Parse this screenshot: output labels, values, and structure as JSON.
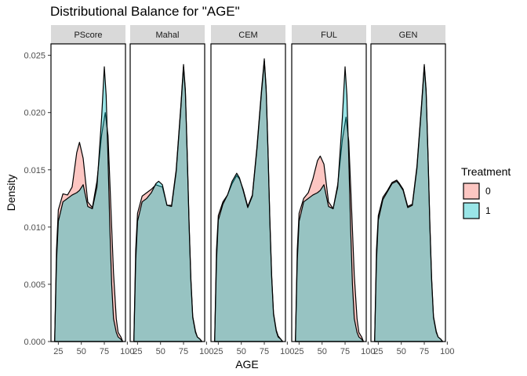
{
  "chart_data": {
    "type": "area",
    "title": "Distributional Balance for \"AGE\"",
    "xlabel": "AGE",
    "ylabel": "Density",
    "ylim": [
      0,
      0.026
    ],
    "yticks": [
      0.0,
      0.005,
      0.01,
      0.015,
      0.02,
      0.025
    ],
    "ytick_labels": [
      "0.000",
      "0.005",
      "0.010",
      "0.015",
      "0.020",
      "0.025"
    ],
    "xlim": [
      17,
      98
    ],
    "xticks": [
      25,
      50,
      75,
      100
    ],
    "xtick_labels": [
      "25",
      "50",
      "75",
      "100"
    ],
    "grid": false,
    "legend": {
      "title": "Treatment",
      "placement": "right",
      "entries": [
        {
          "label": "0",
          "color": "#F8766D"
        },
        {
          "label": "1",
          "color": "#00BFC4"
        }
      ]
    },
    "series_colors": {
      "0": "#F8766D",
      "1": "#00BFC4"
    },
    "panels": [
      {
        "name": "PScore",
        "series": [
          {
            "name": "0",
            "x": [
              21,
              23,
              25,
              30,
              35,
              40,
              45,
              48,
              52,
              57,
              62,
              67,
              72,
              76,
              79,
              82,
              85,
              88,
              90,
              93,
              95
            ],
            "y": [
              0.0,
              0.008,
              0.0115,
              0.0129,
              0.0128,
              0.0135,
              0.0165,
              0.0174,
              0.016,
              0.0122,
              0.0117,
              0.014,
              0.018,
              0.02,
              0.018,
              0.012,
              0.006,
              0.002,
              0.0008,
              0.0004,
              0.0
            ]
          },
          {
            "name": "1",
            "x": [
              21,
              23,
              25,
              30,
              35,
              40,
              45,
              48,
              52,
              57,
              62,
              67,
              72,
              75,
              77,
              79,
              81,
              83,
              85,
              88,
              90,
              93,
              95
            ],
            "y": [
              0.0,
              0.007,
              0.0105,
              0.0122,
              0.0125,
              0.0128,
              0.013,
              0.0132,
              0.0137,
              0.0118,
              0.0116,
              0.0135,
              0.0195,
              0.024,
              0.0215,
              0.016,
              0.01,
              0.005,
              0.002,
              0.0008,
              0.0004,
              0.0002,
              0.0
            ]
          }
        ]
      },
      {
        "name": "Mahal",
        "series": [
          {
            "name": "0",
            "x": [
              21,
              23,
              25,
              30,
              35,
              40,
              45,
              48,
              52,
              57,
              62,
              67,
              72,
              75,
              77,
              79,
              81,
              83,
              85,
              88,
              90,
              93,
              95
            ],
            "y": [
              0.0,
              0.008,
              0.0112,
              0.0127,
              0.013,
              0.0133,
              0.0137,
              0.0136,
              0.0135,
              0.0119,
              0.0119,
              0.015,
              0.0205,
              0.0242,
              0.022,
              0.0165,
              0.0105,
              0.0055,
              0.0022,
              0.0009,
              0.0004,
              0.0002,
              0.0
            ]
          },
          {
            "name": "1",
            "x": [
              21,
              23,
              25,
              30,
              35,
              40,
              45,
              48,
              52,
              57,
              62,
              67,
              72,
              75,
              77,
              79,
              81,
              83,
              85,
              88,
              90,
              93,
              95
            ],
            "y": [
              0.0,
              0.007,
              0.0105,
              0.0122,
              0.0125,
              0.013,
              0.0138,
              0.014,
              0.0137,
              0.0119,
              0.0118,
              0.0148,
              0.0203,
              0.024,
              0.0218,
              0.0163,
              0.0103,
              0.0053,
              0.0021,
              0.0008,
              0.0004,
              0.0002,
              0.0
            ]
          }
        ]
      },
      {
        "name": "CEM",
        "series": [
          {
            "name": "0",
            "x": [
              21,
              23,
              25,
              30,
              35,
              40,
              45,
              48,
              52,
              57,
              62,
              67,
              72,
              75,
              77,
              79,
              81,
              83,
              85,
              88,
              90,
              93,
              95
            ],
            "y": [
              0.0,
              0.008,
              0.011,
              0.0122,
              0.0128,
              0.0138,
              0.0145,
              0.0142,
              0.0133,
              0.0118,
              0.0128,
              0.017,
              0.022,
              0.0247,
              0.0222,
              0.0168,
              0.0108,
              0.0058,
              0.0025,
              0.001,
              0.0005,
              0.0002,
              0.0
            ]
          },
          {
            "name": "1",
            "x": [
              21,
              23,
              25,
              30,
              35,
              40,
              45,
              48,
              52,
              57,
              62,
              67,
              72,
              75,
              77,
              79,
              81,
              83,
              85,
              88,
              90,
              93,
              95
            ],
            "y": [
              0.0,
              0.007,
              0.0106,
              0.012,
              0.0128,
              0.014,
              0.0147,
              0.0143,
              0.0132,
              0.0117,
              0.0127,
              0.0168,
              0.0218,
              0.0245,
              0.022,
              0.0166,
              0.0106,
              0.0056,
              0.0024,
              0.0009,
              0.0004,
              0.0002,
              0.0
            ]
          }
        ]
      },
      {
        "name": "FUL",
        "series": [
          {
            "name": "0",
            "x": [
              21,
              23,
              25,
              30,
              35,
              40,
              45,
              48,
              52,
              57,
              62,
              67,
              72,
              76,
              79,
              82,
              85,
              88,
              90,
              93,
              95
            ],
            "y": [
              0.0,
              0.008,
              0.0112,
              0.0125,
              0.013,
              0.0142,
              0.0158,
              0.0162,
              0.0155,
              0.0122,
              0.0116,
              0.0137,
              0.0176,
              0.0196,
              0.0175,
              0.0118,
              0.0058,
              0.002,
              0.0008,
              0.0004,
              0.0
            ]
          },
          {
            "name": "1",
            "x": [
              21,
              23,
              25,
              30,
              35,
              40,
              45,
              48,
              52,
              57,
              62,
              67,
              72,
              75,
              77,
              79,
              81,
              83,
              85,
              88,
              90,
              93,
              95
            ],
            "y": [
              0.0,
              0.007,
              0.0105,
              0.0122,
              0.0125,
              0.0128,
              0.013,
              0.0132,
              0.0137,
              0.0118,
              0.0116,
              0.0135,
              0.0195,
              0.024,
              0.0215,
              0.016,
              0.01,
              0.005,
              0.002,
              0.0008,
              0.0004,
              0.0002,
              0.0
            ]
          }
        ]
      },
      {
        "name": "GEN",
        "series": [
          {
            "name": "0",
            "x": [
              21,
              23,
              25,
              30,
              35,
              40,
              45,
              48,
              52,
              57,
              62,
              67,
              72,
              75,
              77,
              79,
              81,
              83,
              85,
              88,
              90,
              93,
              95
            ],
            "y": [
              0.0,
              0.008,
              0.011,
              0.0126,
              0.0132,
              0.0139,
              0.0141,
              0.0138,
              0.0133,
              0.0118,
              0.012,
              0.0153,
              0.0207,
              0.0242,
              0.022,
              0.0165,
              0.0105,
              0.0055,
              0.0022,
              0.0009,
              0.0004,
              0.0002,
              0.0
            ]
          },
          {
            "name": "1",
            "x": [
              21,
              23,
              25,
              30,
              35,
              40,
              45,
              48,
              52,
              57,
              62,
              67,
              72,
              75,
              77,
              79,
              81,
              83,
              85,
              88,
              90,
              93,
              95
            ],
            "y": [
              0.0,
              0.007,
              0.0106,
              0.0124,
              0.0131,
              0.0138,
              0.014,
              0.0137,
              0.0132,
              0.0117,
              0.0119,
              0.0151,
              0.0205,
              0.024,
              0.0218,
              0.0163,
              0.0103,
              0.0053,
              0.0021,
              0.0008,
              0.0004,
              0.0002,
              0.0
            ]
          }
        ]
      }
    ]
  }
}
